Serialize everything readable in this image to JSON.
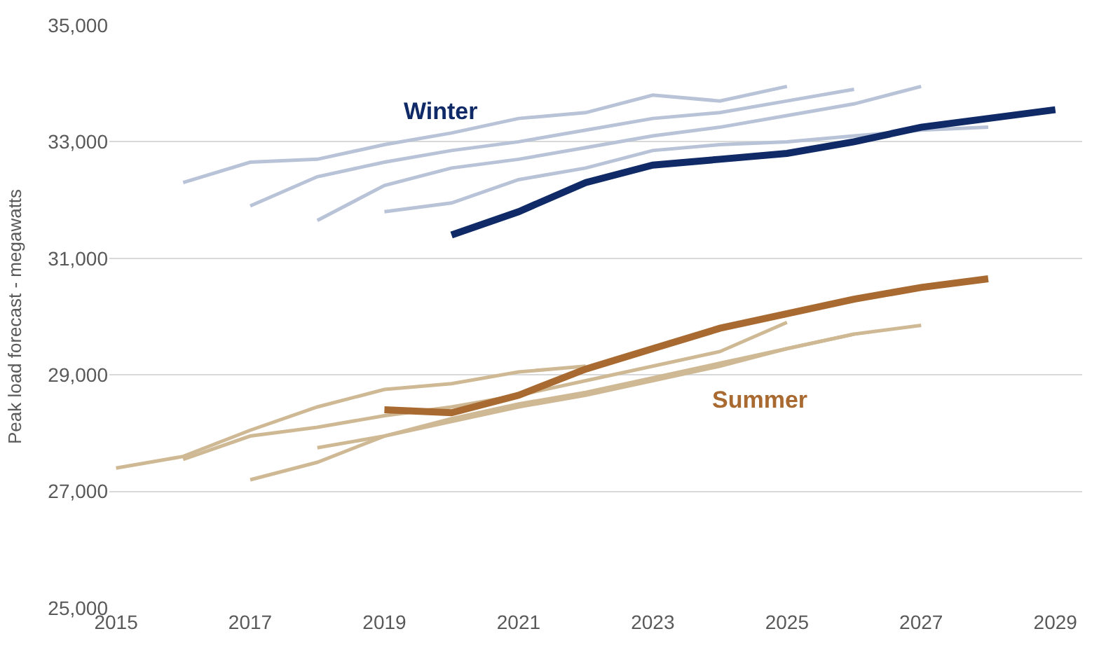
{
  "chart_data": {
    "type": "line",
    "ylabel": "Peak load forecast - megawatts",
    "ylim": [
      25000,
      35000
    ],
    "yticks": [
      {
        "value": 25000,
        "label": "25,000"
      },
      {
        "value": 27000,
        "label": "27,000"
      },
      {
        "value": 29000,
        "label": "29,000"
      },
      {
        "value": 31000,
        "label": "31,000"
      },
      {
        "value": 33000,
        "label": "33,000"
      },
      {
        "value": 35000,
        "label": "35,000"
      }
    ],
    "xlim": [
      2014.9,
      2029.4
    ],
    "xticks": [
      2015,
      2017,
      2019,
      2021,
      2023,
      2025,
      2027,
      2029
    ],
    "grid": "y",
    "legend": false,
    "marker": "none",
    "line_style": "solid",
    "series": [
      {
        "color": "#b9c3d8",
        "x": [
          2016,
          2017,
          2018,
          2019,
          2020,
          2021,
          2022,
          2023,
          2024,
          2025
        ],
        "values": [
          32300,
          32650,
          32700,
          32950,
          33150,
          33400,
          33500,
          33800,
          33700,
          33950
        ]
      },
      {
        "color": "#b9c3d8",
        "x": [
          2017,
          2018,
          2019,
          2020,
          2021,
          2022,
          2023,
          2024,
          2025,
          2026
        ],
        "values": [
          31900,
          32400,
          32650,
          32850,
          33000,
          33200,
          33400,
          33500,
          33700,
          33900
        ]
      },
      {
        "color": "#b9c3d8",
        "x": [
          2018,
          2019,
          2020,
          2021,
          2022,
          2023,
          2024,
          2025,
          2026,
          2027
        ],
        "values": [
          31650,
          32250,
          32550,
          32700,
          32900,
          33100,
          33250,
          33450,
          33650,
          33950
        ]
      },
      {
        "color": "#b9c3d8",
        "x": [
          2019,
          2020,
          2021,
          2022,
          2023,
          2024,
          2025,
          2026,
          2027,
          2028
        ],
        "values": [
          31800,
          31950,
          32350,
          32550,
          32850,
          32950,
          33000,
          33100,
          33200,
          33250
        ]
      },
      {
        "name": "Winter",
        "color": "#0f2a66",
        "x": [
          2020,
          2021,
          2022,
          2023,
          2024,
          2025,
          2026,
          2027,
          2028,
          2029
        ],
        "values": [
          31400,
          31800,
          32300,
          32600,
          32700,
          32800,
          33000,
          33250,
          33400,
          33550
        ]
      },
      {
        "color": "#cfb995",
        "x": [
          2015,
          2016,
          2017,
          2018,
          2019,
          2020,
          2021,
          2022
        ],
        "values": [
          27400,
          27600,
          28050,
          28450,
          28750,
          28850,
          29050,
          29150
        ]
      },
      {
        "color": "#cfb995",
        "x": [
          2016,
          2017,
          2018,
          2019,
          2020,
          2021,
          2022,
          2023,
          2024,
          2025
        ],
        "values": [
          27550,
          27950,
          28100,
          28300,
          28450,
          28650,
          28900,
          29150,
          29400,
          29900
        ]
      },
      {
        "color": "#cfb995",
        "x": [
          2017,
          2018,
          2019,
          2020,
          2021,
          2022,
          2023,
          2024,
          2025,
          2026,
          2027
        ],
        "values": [
          27200,
          27500,
          27950,
          28250,
          28500,
          28700,
          28950,
          29200,
          29450,
          29700,
          29850
        ]
      },
      {
        "color": "#cfb995",
        "x": [
          2018,
          2019,
          2020,
          2021,
          2022,
          2023,
          2024,
          2025,
          2026
        ],
        "values": [
          27750,
          27950,
          28200,
          28450,
          28650,
          28900,
          29150,
          29450,
          29700
        ]
      },
      {
        "name": "Summer",
        "color": "#a86a30",
        "x": [
          2019,
          2020,
          2021,
          2022,
          2023,
          2024,
          2025,
          2026,
          2027,
          2028
        ],
        "values": [
          28400,
          28350,
          28650,
          29100,
          29450,
          29800,
          30050,
          30300,
          30500,
          30650
        ]
      }
    ]
  }
}
